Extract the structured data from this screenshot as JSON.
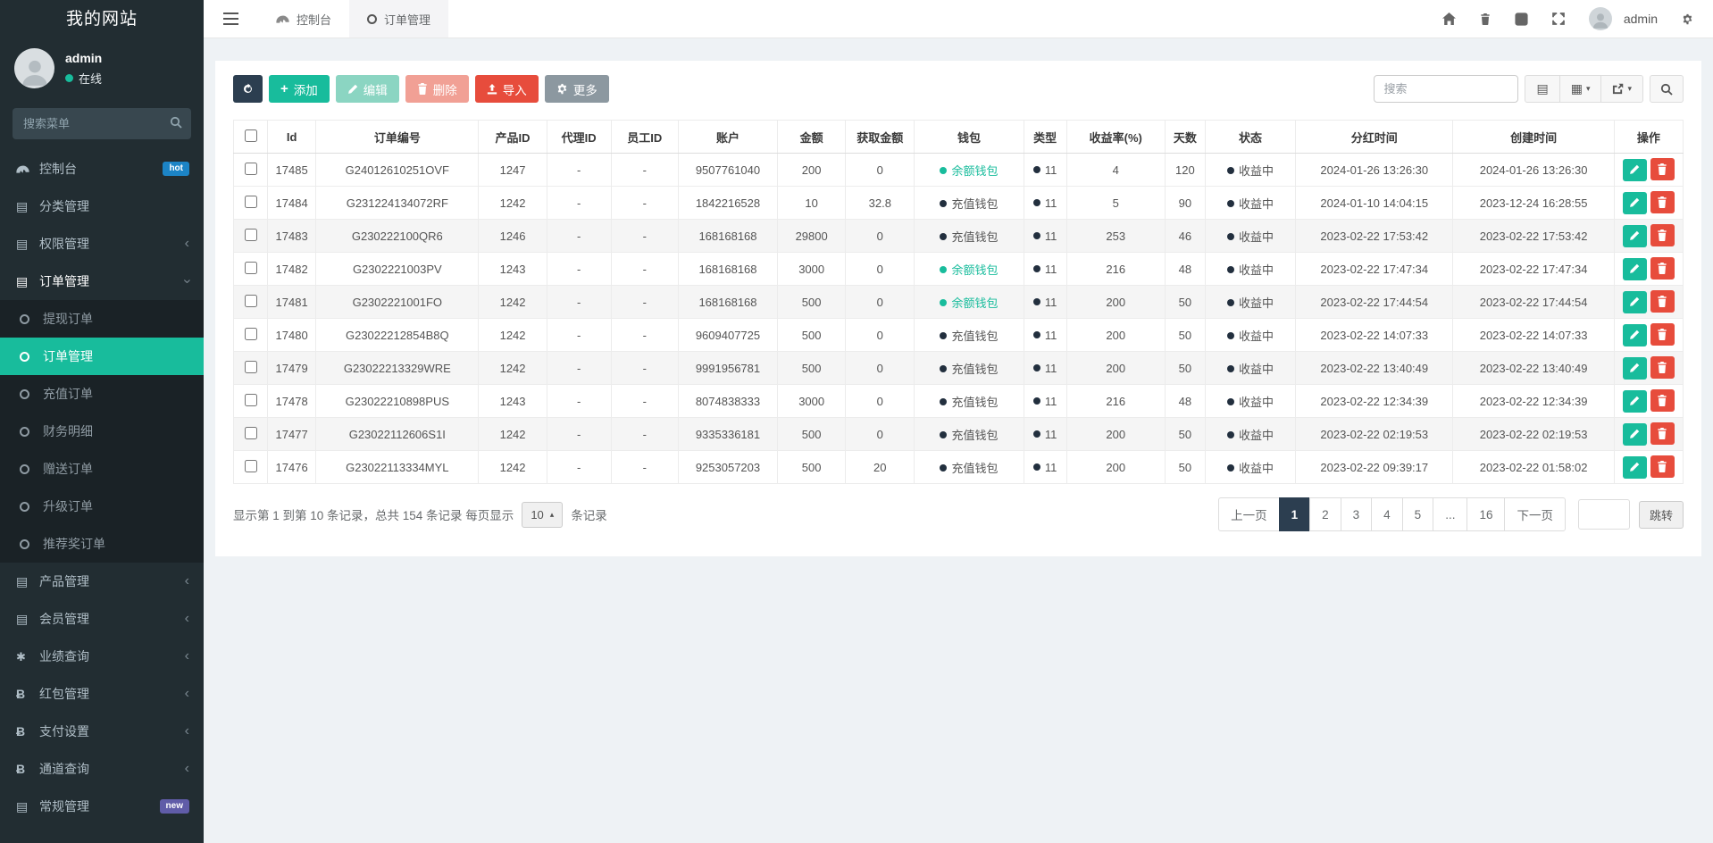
{
  "colors": {
    "accent": "#18bc9c",
    "danger": "#e74c3c",
    "dark_navy": "#2c3e50",
    "badge_hot": "#1c84c6",
    "badge_new": "#605ca8",
    "sidebar_bg": "#222d32",
    "submenu_bg": "#1a2226",
    "content_bg": "#eef2f5"
  },
  "sidebar": {
    "title": "我的网站",
    "user_name": "admin",
    "user_status": "在线",
    "search_placeholder": "搜索菜单",
    "menu": [
      {
        "label": "控制台",
        "icon": "dashboard-icon",
        "badge": "hot"
      },
      {
        "label": "分类管理",
        "icon": "list-icon"
      },
      {
        "label": "权限管理",
        "icon": "list-icon",
        "chevron": "left"
      },
      {
        "label": "订单管理",
        "icon": "list-icon",
        "chevron": "down",
        "active": true
      },
      {
        "label": "提现订单",
        "icon": "circle-icon",
        "sub": true
      },
      {
        "label": "订单管理",
        "icon": "circle-icon",
        "sub": true,
        "active": true
      },
      {
        "label": "充值订单",
        "icon": "circle-icon",
        "sub": true
      },
      {
        "label": "财务明细",
        "icon": "circle-icon",
        "sub": true
      },
      {
        "label": "赠送订单",
        "icon": "circle-icon",
        "sub": true
      },
      {
        "label": "升级订单",
        "icon": "circle-icon",
        "sub": true
      },
      {
        "label": "推荐奖订单",
        "icon": "circle-icon",
        "sub": true
      },
      {
        "label": "产品管理",
        "icon": "list-icon",
        "chevron": "left"
      },
      {
        "label": "会员管理",
        "icon": "list-icon",
        "chevron": "left"
      },
      {
        "label": "业绩查询",
        "icon": "asterisk-icon",
        "chevron": "left"
      },
      {
        "label": "红包管理",
        "icon": "btc-icon",
        "chevron": "left"
      },
      {
        "label": "支付设置",
        "icon": "btc-icon",
        "chevron": "left"
      },
      {
        "label": "通道查询",
        "icon": "btc-icon",
        "chevron": "left"
      },
      {
        "label": "常规管理",
        "icon": "list-icon",
        "badge": "new"
      }
    ]
  },
  "navbar": {
    "tabs": [
      {
        "label": "控制台",
        "icon": "dashboard-icon"
      },
      {
        "label": "订单管理",
        "icon": "circle-icon",
        "active": true
      }
    ],
    "user": "admin"
  },
  "toolbar": {
    "buttons": [
      {
        "name": "refresh",
        "label": "",
        "icon": "refresh-icon"
      },
      {
        "name": "add",
        "label": "添加",
        "icon": "plus-icon"
      },
      {
        "name": "edit",
        "label": "编辑",
        "icon": "pencil-icon"
      },
      {
        "name": "delete",
        "label": "删除",
        "icon": "trash-icon"
      },
      {
        "name": "import",
        "label": "导入",
        "icon": "upload-icon"
      },
      {
        "name": "more",
        "label": "更多",
        "icon": "gear-icon"
      }
    ],
    "search_placeholder": "搜索"
  },
  "table": {
    "columns": [
      "Id",
      "订单编号",
      "产品ID",
      "代理ID",
      "员工ID",
      "账户",
      "金额",
      "获取金额",
      "钱包",
      "类型",
      "收益率(%)",
      "天数",
      "状态",
      "分红时间",
      "创建时间",
      "操作"
    ],
    "rows": [
      {
        "id": "17485",
        "order_no": "G24012610251OVF",
        "product_id": "1247",
        "agent_id": "-",
        "staff_id": "-",
        "account": "9507761040",
        "amount": "200",
        "obtained": "0",
        "wallet": "余额钱包",
        "type": "11",
        "rate": "4",
        "days": "120",
        "status": "收益中",
        "dividend_time": "2024-01-26 13:26:30",
        "created_time": "2024-01-26 13:26:30"
      },
      {
        "id": "17484",
        "order_no": "G231224134072RF",
        "product_id": "1242",
        "agent_id": "-",
        "staff_id": "-",
        "account": "1842216528",
        "amount": "10",
        "obtained": "32.8",
        "wallet": "充值钱包",
        "type": "11",
        "rate": "5",
        "days": "90",
        "status": "收益中",
        "dividend_time": "2024-01-10 14:04:15",
        "created_time": "2023-12-24 16:28:55"
      },
      {
        "id": "17483",
        "order_no": "G230222100QR6",
        "product_id": "1246",
        "agent_id": "-",
        "staff_id": "-",
        "account": "168168168",
        "amount": "29800",
        "obtained": "0",
        "wallet": "充值钱包",
        "type": "11",
        "rate": "253",
        "days": "46",
        "status": "收益中",
        "dividend_time": "2023-02-22 17:53:42",
        "created_time": "2023-02-22 17:53:42"
      },
      {
        "id": "17482",
        "order_no": "G2302221003PV",
        "product_id": "1243",
        "agent_id": "-",
        "staff_id": "-",
        "account": "168168168",
        "amount": "3000",
        "obtained": "0",
        "wallet": "余额钱包",
        "type": "11",
        "rate": "216",
        "days": "48",
        "status": "收益中",
        "dividend_time": "2023-02-22 17:47:34",
        "created_time": "2023-02-22 17:47:34"
      },
      {
        "id": "17481",
        "order_no": "G2302221001FO",
        "product_id": "1242",
        "agent_id": "-",
        "staff_id": "-",
        "account": "168168168",
        "amount": "500",
        "obtained": "0",
        "wallet": "余额钱包",
        "type": "11",
        "rate": "200",
        "days": "50",
        "status": "收益中",
        "dividend_time": "2023-02-22 17:44:54",
        "created_time": "2023-02-22 17:44:54"
      },
      {
        "id": "17480",
        "order_no": "G23022212854B8Q",
        "product_id": "1242",
        "agent_id": "-",
        "staff_id": "-",
        "account": "9609407725",
        "amount": "500",
        "obtained": "0",
        "wallet": "充值钱包",
        "type": "11",
        "rate": "200",
        "days": "50",
        "status": "收益中",
        "dividend_time": "2023-02-22 14:07:33",
        "created_time": "2023-02-22 14:07:33"
      },
      {
        "id": "17479",
        "order_no": "G23022213329WRE",
        "product_id": "1242",
        "agent_id": "-",
        "staff_id": "-",
        "account": "9991956781",
        "amount": "500",
        "obtained": "0",
        "wallet": "充值钱包",
        "type": "11",
        "rate": "200",
        "days": "50",
        "status": "收益中",
        "dividend_time": "2023-02-22 13:40:49",
        "created_time": "2023-02-22 13:40:49"
      },
      {
        "id": "17478",
        "order_no": "G23022210898PUS",
        "product_id": "1243",
        "agent_id": "-",
        "staff_id": "-",
        "account": "8074838333",
        "amount": "3000",
        "obtained": "0",
        "wallet": "充值钱包",
        "type": "11",
        "rate": "216",
        "days": "48",
        "status": "收益中",
        "dividend_time": "2023-02-22 12:34:39",
        "created_time": "2023-02-22 12:34:39"
      },
      {
        "id": "17477",
        "order_no": "G23022112606S1I",
        "product_id": "1242",
        "agent_id": "-",
        "staff_id": "-",
        "account": "9335336181",
        "amount": "500",
        "obtained": "0",
        "wallet": "充值钱包",
        "type": "11",
        "rate": "200",
        "days": "50",
        "status": "收益中",
        "dividend_time": "2023-02-22 02:19:53",
        "created_time": "2023-02-22 02:19:53"
      },
      {
        "id": "17476",
        "order_no": "G23022113334MYL",
        "product_id": "1242",
        "agent_id": "-",
        "staff_id": "-",
        "account": "9253057203",
        "amount": "500",
        "obtained": "20",
        "wallet": "充值钱包",
        "type": "11",
        "rate": "200",
        "days": "50",
        "status": "收益中",
        "dividend_time": "2023-02-22 09:39:17",
        "created_time": "2023-02-22 01:58:02"
      }
    ]
  },
  "footer": {
    "summary_prefix": "显示第 1 到第 10 条记录，总共 154 条记录 每页显示",
    "page_size": "10",
    "summary_suffix": "条记录",
    "prev": "上一页",
    "pages": [
      "1",
      "2",
      "3",
      "4",
      "5",
      "...",
      "16"
    ],
    "active_page": "1",
    "next": "下一页",
    "jump": "跳转"
  }
}
